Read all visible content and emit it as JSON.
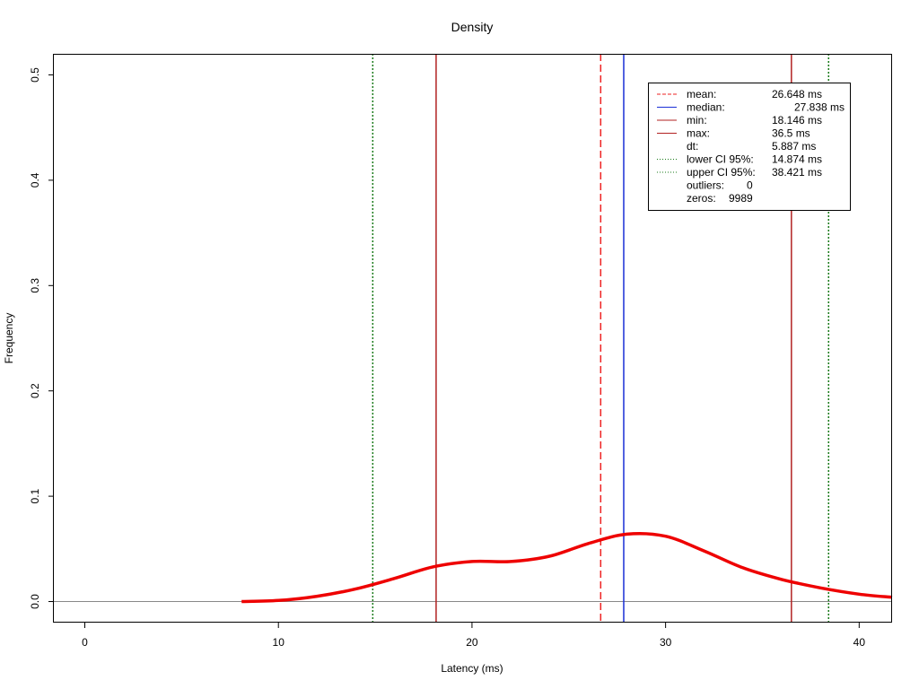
{
  "chart_data": {
    "type": "line",
    "title": "Density",
    "xlabel": "Latency (ms)",
    "ylabel": "Frequency",
    "xlim": [
      -1.6,
      41.7
    ],
    "ylim": [
      -0.02,
      0.52
    ],
    "x_ticks": [
      0,
      10,
      20,
      30,
      40
    ],
    "y_ticks": [
      0.0,
      0.1,
      0.2,
      0.3,
      0.4,
      0.5
    ],
    "x_tick_labels": [
      "0",
      "10",
      "20",
      "30",
      "40"
    ],
    "y_tick_labels": [
      "0.0",
      "0.1",
      "0.2",
      "0.3",
      "0.4",
      "0.5"
    ],
    "grid": false,
    "legend_position": "top-right",
    "series": [
      {
        "color": "#ee0000",
        "x": [
          8.1,
          10,
          12,
          14,
          16,
          18,
          20,
          22,
          24,
          26,
          28,
          30,
          32,
          34,
          36,
          38,
          40,
          41.7
        ],
        "y": [
          0.0,
          0.001,
          0.005,
          0.012,
          0.022,
          0.033,
          0.038,
          0.038,
          0.043,
          0.055,
          0.064,
          0.062,
          0.048,
          0.032,
          0.021,
          0.013,
          0.007,
          0.004
        ]
      }
    ],
    "vlines": [
      {
        "value": 26.648,
        "color": "#ee2222",
        "style": "dashed"
      },
      {
        "value": 27.838,
        "color": "#1a2fd6",
        "style": "solid"
      },
      {
        "value": 18.146,
        "color": "#b22222",
        "style": "solid"
      },
      {
        "value": 36.5,
        "color": "#b22222",
        "style": "solid"
      },
      {
        "value": 14.874,
        "color": "#1a7a1a",
        "style": "dotted"
      },
      {
        "value": 38.421,
        "color": "#1a7a1a",
        "style": "dotted"
      }
    ],
    "hline": {
      "value": 0.0,
      "color": "#888888"
    },
    "legend": [
      {
        "label": "mean:",
        "value": "26.648 ms",
        "color": "#ee2222",
        "style": "dashed"
      },
      {
        "label": "median:",
        "value": "27.838 ms",
        "color": "#1a2fd6",
        "style": "solid"
      },
      {
        "label": "min:",
        "value": "18.146 ms",
        "color": "#b22222",
        "style": "solid"
      },
      {
        "label": "max:",
        "value": "36.5 ms",
        "color": "#b22222",
        "style": "solid"
      },
      {
        "label": "dt:",
        "value": "5.887 ms",
        "color": "",
        "style": "none"
      },
      {
        "label": "lower CI 95%:",
        "value": "14.874 ms",
        "color": "#1a7a1a",
        "style": "dotted"
      },
      {
        "label": "upper CI 95%:",
        "value": "38.421 ms",
        "color": "#1a7a1a",
        "style": "dotted"
      },
      {
        "label": "outliers:",
        "value": "0",
        "color": "",
        "style": "none"
      },
      {
        "label": "zeros:",
        "value": "9989",
        "color": "",
        "style": "none"
      }
    ]
  }
}
